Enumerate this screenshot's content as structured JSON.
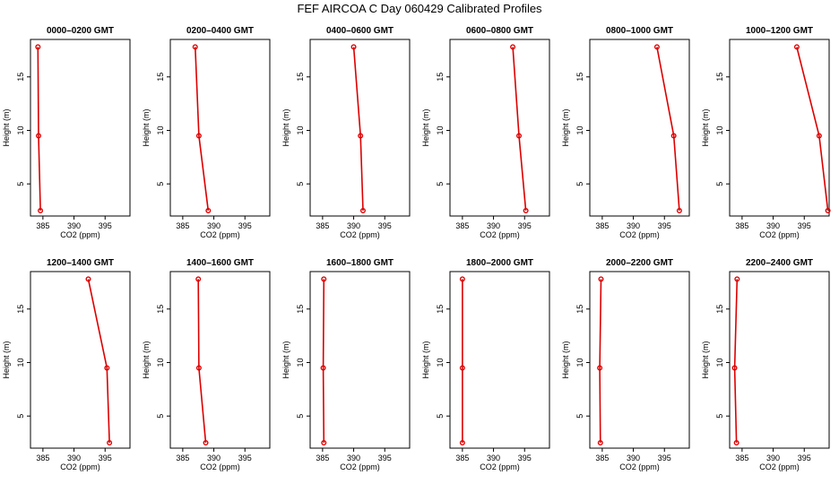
{
  "title": "FEF AIRCOA C  Day 060429  Calibrated Profiles",
  "colors": {
    "profile": "#dd0000",
    "axis": "#000000",
    "background": "#ffffff"
  },
  "chart_data": [
    {
      "type": "line",
      "title": "0000–0200 GMT",
      "xlabel": "CO2 (ppm)",
      "ylabel": "Height (m)",
      "xlim": [
        383,
        399
      ],
      "ylim": [
        2,
        18.5
      ],
      "x_ticks": [
        "385",
        "390",
        "395"
      ],
      "y_ticks": [
        "5",
        "10",
        "15"
      ],
      "series": [
        {
          "x": [
            384.6,
            384.3,
            384.2
          ],
          "y": [
            2.5,
            9.5,
            17.8
          ]
        }
      ]
    },
    {
      "type": "line",
      "title": "0200–0400 GMT",
      "xlabel": "CO2 (ppm)",
      "ylabel": "Height (m)",
      "xlim": [
        383,
        399
      ],
      "ylim": [
        2,
        18.5
      ],
      "x_ticks": [
        "385",
        "390",
        "395"
      ],
      "y_ticks": [
        "5",
        "10",
        "15"
      ],
      "series": [
        {
          "x": [
            389.1,
            387.6,
            387.0
          ],
          "y": [
            2.5,
            9.5,
            17.8
          ]
        }
      ]
    },
    {
      "type": "line",
      "title": "0400–0600 GMT",
      "xlabel": "CO2 (ppm)",
      "ylabel": "Height (m)",
      "xlim": [
        383,
        399
      ],
      "ylim": [
        2,
        18.5
      ],
      "x_ticks": [
        "385",
        "390",
        "395"
      ],
      "y_ticks": [
        "5",
        "10",
        "15"
      ],
      "series": [
        {
          "x": [
            391.5,
            391.1,
            390.0
          ],
          "y": [
            2.5,
            9.5,
            17.8
          ]
        }
      ]
    },
    {
      "type": "line",
      "title": "0600–0800 GMT",
      "xlabel": "CO2 (ppm)",
      "ylabel": "Height (m)",
      "xlim": [
        383,
        399
      ],
      "ylim": [
        2,
        18.5
      ],
      "x_ticks": [
        "385",
        "390",
        "395"
      ],
      "y_ticks": [
        "5",
        "10",
        "15"
      ],
      "series": [
        {
          "x": [
            395.2,
            394.1,
            393.1
          ],
          "y": [
            2.5,
            9.5,
            17.8
          ]
        }
      ]
    },
    {
      "type": "line",
      "title": "0800–1000 GMT",
      "xlabel": "CO2 (ppm)",
      "ylabel": "Height (m)",
      "xlim": [
        383,
        399
      ],
      "ylim": [
        2,
        18.5
      ],
      "x_ticks": [
        "385",
        "390",
        "395"
      ],
      "y_ticks": [
        "5",
        "10",
        "15"
      ],
      "series": [
        {
          "x": [
            397.4,
            396.5,
            393.8
          ],
          "y": [
            2.5,
            9.5,
            17.8
          ]
        }
      ]
    },
    {
      "type": "line",
      "title": "1000–1200 GMT",
      "xlabel": "CO2 (ppm)",
      "ylabel": "Height (m)",
      "xlim": [
        383,
        399
      ],
      "ylim": [
        2,
        18.5
      ],
      "x_ticks": [
        "385",
        "390",
        "395"
      ],
      "y_ticks": [
        "5",
        "10",
        "15"
      ],
      "series": [
        {
          "x": [
            398.8,
            397.4,
            393.8
          ],
          "y": [
            2.5,
            9.5,
            17.8
          ]
        }
      ]
    },
    {
      "type": "line",
      "title": "1200–1400 GMT",
      "xlabel": "CO2 (ppm)",
      "ylabel": "Height (m)",
      "xlim": [
        383,
        399
      ],
      "ylim": [
        2,
        18.5
      ],
      "x_ticks": [
        "385",
        "390",
        "395"
      ],
      "y_ticks": [
        "5",
        "10",
        "15"
      ],
      "series": [
        {
          "x": [
            395.7,
            395.3,
            392.3
          ],
          "y": [
            2.5,
            9.5,
            17.8
          ]
        }
      ]
    },
    {
      "type": "line",
      "title": "1400–1600 GMT",
      "xlabel": "CO2 (ppm)",
      "ylabel": "Height (m)",
      "xlim": [
        383,
        399
      ],
      "ylim": [
        2,
        18.5
      ],
      "x_ticks": [
        "385",
        "390",
        "395"
      ],
      "y_ticks": [
        "5",
        "10",
        "15"
      ],
      "series": [
        {
          "x": [
            388.7,
            387.6,
            387.5
          ],
          "y": [
            2.5,
            9.5,
            17.8
          ]
        }
      ]
    },
    {
      "type": "line",
      "title": "1600–1800 GMT",
      "xlabel": "CO2 (ppm)",
      "ylabel": "Height (m)",
      "xlim": [
        383,
        399
      ],
      "ylim": [
        2,
        18.5
      ],
      "x_ticks": [
        "385",
        "390",
        "395"
      ],
      "y_ticks": [
        "5",
        "10",
        "15"
      ],
      "series": [
        {
          "x": [
            385.2,
            385.1,
            385.2
          ],
          "y": [
            2.5,
            9.5,
            17.8
          ]
        }
      ]
    },
    {
      "type": "line",
      "title": "1800–2000 GMT",
      "xlabel": "CO2 (ppm)",
      "ylabel": "Height (m)",
      "xlim": [
        383,
        399
      ],
      "ylim": [
        2,
        18.5
      ],
      "x_ticks": [
        "385",
        "390",
        "395"
      ],
      "y_ticks": [
        "5",
        "10",
        "15"
      ],
      "series": [
        {
          "x": [
            385.0,
            385.0,
            385.0
          ],
          "y": [
            2.5,
            9.5,
            17.8
          ]
        }
      ]
    },
    {
      "type": "line",
      "title": "2000–2200 GMT",
      "xlabel": "CO2 (ppm)",
      "ylabel": "Height (m)",
      "xlim": [
        383,
        399
      ],
      "ylim": [
        2,
        18.5
      ],
      "x_ticks": [
        "385",
        "390",
        "395"
      ],
      "y_ticks": [
        "5",
        "10",
        "15"
      ],
      "series": [
        {
          "x": [
            384.7,
            384.6,
            384.8
          ],
          "y": [
            2.5,
            9.5,
            17.8
          ]
        }
      ]
    },
    {
      "type": "line",
      "title": "2200–2400 GMT",
      "xlabel": "CO2 (ppm)",
      "ylabel": "Height (m)",
      "xlim": [
        383,
        399
      ],
      "ylim": [
        2,
        18.5
      ],
      "x_ticks": [
        "385",
        "390",
        "395"
      ],
      "y_ticks": [
        "5",
        "10",
        "15"
      ],
      "series": [
        {
          "x": [
            384.1,
            383.8,
            384.2
          ],
          "y": [
            2.5,
            9.5,
            17.8
          ]
        }
      ]
    }
  ]
}
